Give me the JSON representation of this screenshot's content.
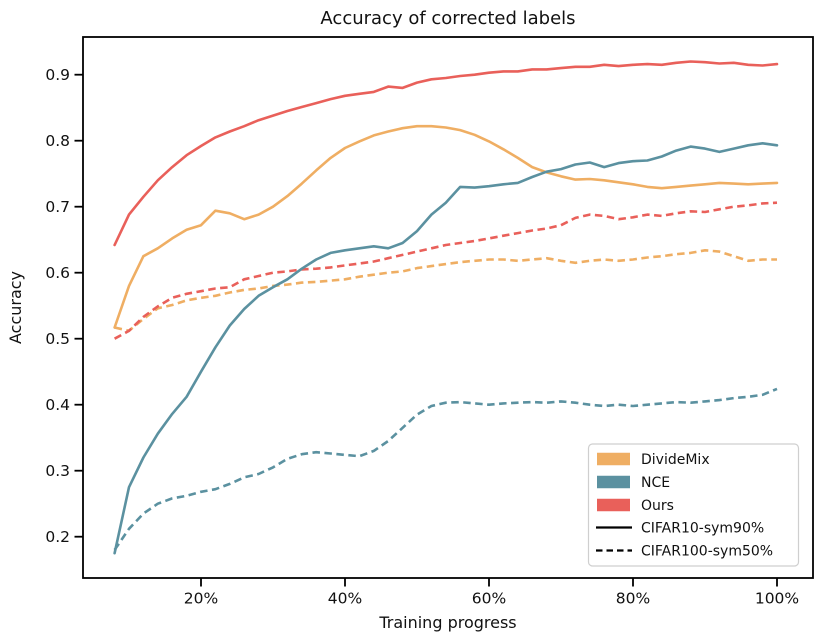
{
  "chart_data": {
    "type": "line",
    "title": "Accuracy of corrected labels",
    "xlabel": "Training progress",
    "ylabel": "Accuracy",
    "grid": false,
    "xlim_percent": [
      3.5,
      105
    ],
    "ylim": [
      0.137,
      0.957
    ],
    "xticks": {
      "values": [
        20,
        40,
        60,
        80,
        100
      ],
      "labels": [
        "20%",
        "40%",
        "60%",
        "80%",
        "100%"
      ]
    },
    "yticks": {
      "values": [
        0.2,
        0.3,
        0.4,
        0.5,
        0.6,
        0.7,
        0.8,
        0.9
      ],
      "labels": [
        "0.2",
        "0.3",
        "0.4",
        "0.5",
        "0.6",
        "0.7",
        "0.8",
        "0.9"
      ]
    },
    "colors": {
      "dividemix": "#EFAE63",
      "nce": "#5B91A0",
      "ours": "#E9605A",
      "line_sample": "#000000"
    },
    "legend": {
      "position": "lower right",
      "color_entries": [
        {
          "label": "DivideMix",
          "color": "#EFAE63"
        },
        {
          "label": "NCE",
          "color": "#5B91A0"
        },
        {
          "label": "Ours",
          "color": "#E9605A"
        }
      ],
      "style_entries": [
        {
          "label": "CIFAR10-sym90%",
          "style": "solid"
        },
        {
          "label": "CIFAR100-sym50%",
          "style": "dashed"
        }
      ]
    },
    "x_percent": [
      8,
      10,
      12,
      14,
      16,
      18,
      20,
      22,
      24,
      26,
      28,
      30,
      32,
      34,
      36,
      38,
      40,
      42,
      44,
      46,
      48,
      50,
      52,
      54,
      56,
      58,
      60,
      62,
      64,
      66,
      68,
      70,
      72,
      74,
      76,
      78,
      80,
      82,
      84,
      86,
      88,
      90,
      92,
      94,
      96,
      98,
      100
    ],
    "series": [
      {
        "name": "DivideMix",
        "dataset": "CIFAR100-sym50%",
        "style": "dashed",
        "color": "#EFAE63",
        "values": [
          0.517,
          0.512,
          0.53,
          0.546,
          0.551,
          0.558,
          0.562,
          0.565,
          0.57,
          0.574,
          0.576,
          0.58,
          0.582,
          0.585,
          0.586,
          0.588,
          0.59,
          0.594,
          0.597,
          0.6,
          0.602,
          0.607,
          0.61,
          0.613,
          0.616,
          0.618,
          0.62,
          0.62,
          0.618,
          0.62,
          0.622,
          0.618,
          0.615,
          0.618,
          0.62,
          0.618,
          0.62,
          0.623,
          0.625,
          0.628,
          0.63,
          0.634,
          0.632,
          0.625,
          0.618,
          0.62,
          0.62
        ]
      },
      {
        "name": "NCE",
        "dataset": "CIFAR100-sym50%",
        "style": "dashed",
        "color": "#5B91A0",
        "values": [
          0.18,
          0.212,
          0.235,
          0.25,
          0.258,
          0.262,
          0.268,
          0.272,
          0.28,
          0.29,
          0.295,
          0.305,
          0.318,
          0.325,
          0.328,
          0.326,
          0.324,
          0.322,
          0.33,
          0.345,
          0.365,
          0.385,
          0.398,
          0.403,
          0.404,
          0.402,
          0.4,
          0.402,
          0.403,
          0.404,
          0.403,
          0.405,
          0.403,
          0.4,
          0.398,
          0.4,
          0.398,
          0.4,
          0.402,
          0.404,
          0.403,
          0.405,
          0.407,
          0.41,
          0.412,
          0.415,
          0.424
        ]
      },
      {
        "name": "Ours",
        "dataset": "CIFAR100-sym50%",
        "style": "dashed",
        "color": "#E9605A",
        "values": [
          0.5,
          0.512,
          0.533,
          0.549,
          0.562,
          0.568,
          0.572,
          0.576,
          0.578,
          0.59,
          0.595,
          0.6,
          0.602,
          0.605,
          0.606,
          0.608,
          0.611,
          0.614,
          0.617,
          0.622,
          0.627,
          0.632,
          0.637,
          0.642,
          0.645,
          0.648,
          0.652,
          0.656,
          0.66,
          0.664,
          0.667,
          0.672,
          0.683,
          0.688,
          0.686,
          0.681,
          0.684,
          0.688,
          0.686,
          0.69,
          0.693,
          0.692,
          0.696,
          0.7,
          0.702,
          0.705,
          0.706
        ]
      },
      {
        "name": "DivideMix",
        "dataset": "CIFAR10-sym90%",
        "style": "solid",
        "color": "#EFAE63",
        "values": [
          0.517,
          0.58,
          0.625,
          0.637,
          0.652,
          0.665,
          0.672,
          0.694,
          0.69,
          0.681,
          0.688,
          0.7,
          0.716,
          0.735,
          0.755,
          0.774,
          0.789,
          0.799,
          0.808,
          0.814,
          0.819,
          0.822,
          0.822,
          0.82,
          0.816,
          0.809,
          0.799,
          0.787,
          0.774,
          0.76,
          0.752,
          0.746,
          0.741,
          0.742,
          0.74,
          0.737,
          0.734,
          0.73,
          0.728,
          0.73,
          0.732,
          0.734,
          0.736,
          0.735,
          0.734,
          0.735,
          0.736
        ]
      },
      {
        "name": "NCE",
        "dataset": "CIFAR10-sym90%",
        "style": "solid",
        "color": "#5B91A0",
        "values": [
          0.175,
          0.275,
          0.32,
          0.356,
          0.386,
          0.412,
          0.45,
          0.487,
          0.52,
          0.545,
          0.565,
          0.578,
          0.59,
          0.606,
          0.62,
          0.63,
          0.634,
          0.637,
          0.64,
          0.637,
          0.645,
          0.663,
          0.688,
          0.706,
          0.73,
          0.729,
          0.731,
          0.734,
          0.736,
          0.745,
          0.753,
          0.757,
          0.764,
          0.767,
          0.76,
          0.766,
          0.769,
          0.77,
          0.776,
          0.785,
          0.791,
          0.788,
          0.783,
          0.788,
          0.793,
          0.796,
          0.793
        ]
      },
      {
        "name": "Ours",
        "dataset": "CIFAR10-sym90%",
        "style": "solid",
        "color": "#E9605A",
        "values": [
          0.642,
          0.688,
          0.715,
          0.74,
          0.76,
          0.778,
          0.792,
          0.805,
          0.814,
          0.822,
          0.831,
          0.838,
          0.845,
          0.851,
          0.857,
          0.863,
          0.868,
          0.871,
          0.874,
          0.882,
          0.88,
          0.888,
          0.893,
          0.895,
          0.898,
          0.9,
          0.903,
          0.905,
          0.905,
          0.908,
          0.908,
          0.91,
          0.912,
          0.912,
          0.915,
          0.913,
          0.915,
          0.916,
          0.915,
          0.918,
          0.92,
          0.919,
          0.917,
          0.918,
          0.915,
          0.914,
          0.916
        ]
      }
    ]
  }
}
